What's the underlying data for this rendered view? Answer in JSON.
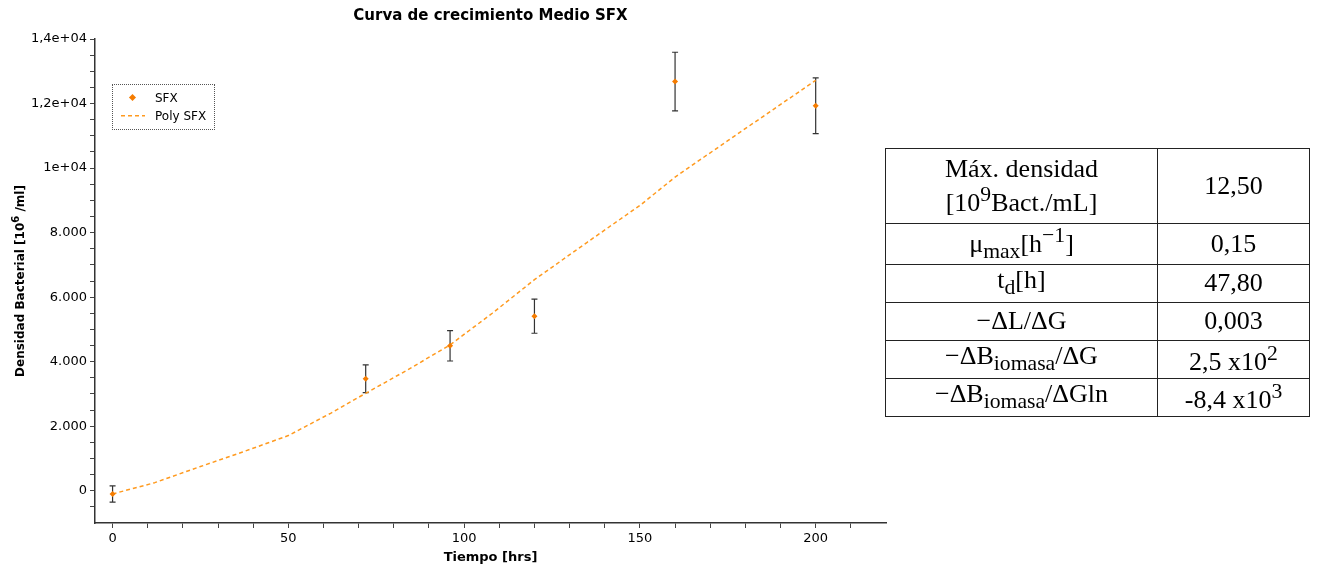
{
  "chart_data": [
    {
      "type": "scatter",
      "title": "Curva de crecimiento Medio SFX",
      "xlabel": "Tiempo [hrs]",
      "ylabel": "Densidad Bacterial [10$^{6}$ /ml]",
      "xlim": [
        -5,
        220
      ],
      "ylim": [
        -1000,
        14000
      ],
      "xticks": [
        0,
        {
          "value": 10,
          "label": null
        },
        {
          "value": 20,
          "label": null
        },
        {
          "value": 30,
          "label": null
        },
        {
          "value": 40,
          "label": null
        },
        50,
        {
          "value": 60,
          "label": null
        },
        {
          "value": 70,
          "label": null
        },
        {
          "value": 80,
          "label": null
        },
        {
          "value": 90,
          "label": null
        },
        100,
        {
          "value": 110,
          "label": null
        },
        {
          "value": 120,
          "label": null
        },
        {
          "value": 130,
          "label": null
        },
        {
          "value": 140,
          "label": null
        },
        150,
        {
          "value": 160,
          "label": null
        },
        {
          "value": 170,
          "label": null
        },
        {
          "value": 180,
          "label": null
        },
        {
          "value": 190,
          "label": null
        },
        200,
        {
          "value": 210,
          "label": null
        }
      ],
      "yticks": [
        {
          "value": -500,
          "label": null
        },
        0,
        {
          "value": 500,
          "label": null
        },
        {
          "value": 1000,
          "label": null
        },
        {
          "value": 1500,
          "label": null
        },
        {
          "value": 2000,
          "label": "2.000"
        },
        {
          "value": 2500,
          "label": null
        },
        {
          "value": 3000,
          "label": null
        },
        {
          "value": 3500,
          "label": null
        },
        {
          "value": 4000,
          "label": "4.000"
        },
        {
          "value": 4500,
          "label": null
        },
        {
          "value": 5000,
          "label": null
        },
        {
          "value": 5500,
          "label": null
        },
        {
          "value": 6000,
          "label": "6.000"
        },
        {
          "value": 6500,
          "label": null
        },
        {
          "value": 7000,
          "label": null
        },
        {
          "value": 7500,
          "label": null
        },
        {
          "value": 8000,
          "label": "8.000"
        },
        {
          "value": 8500,
          "label": null
        },
        {
          "value": 9000,
          "label": null
        },
        {
          "value": 9500,
          "label": null
        },
        {
          "value": 10000,
          "label": "1e+04"
        },
        {
          "value": 10500,
          "label": null
        },
        {
          "value": 11000,
          "label": null
        },
        {
          "value": 11500,
          "label": null
        },
        {
          "value": 12000,
          "label": "1,2e+04"
        },
        {
          "value": 12500,
          "label": null
        },
        {
          "value": 13000,
          "label": null
        },
        {
          "value": 13500,
          "label": null
        },
        {
          "value": 14000,
          "label": "1,4e+04"
        }
      ],
      "grid": false,
      "legend": "top left",
      "series": [
        {
          "name": "SFX",
          "type": "scatter",
          "color": "#f57c00",
          "marker": "diamond",
          "x": [
            0,
            72,
            96,
            120,
            160,
            200
          ],
          "values": [
            -100,
            3470,
            4490,
            5410,
            12680,
            11930
          ],
          "errors": [
            250,
            430,
            470,
            530,
            910,
            865
          ]
        },
        {
          "name": "Poly SFX",
          "type": "line",
          "color": "#ff9a1f",
          "marker": "none",
          "line_style": "dashed",
          "x": [
            0,
            12,
            25,
            37,
            50,
            62,
            72,
            84,
            96,
            108,
            120,
            135,
            150,
            160,
            175,
            188,
            200
          ],
          "values": [
            -100,
            250,
            750,
            1200,
            1710,
            2400,
            3020,
            3750,
            4520,
            5500,
            6540,
            7700,
            8840,
            9720,
            10850,
            11820,
            12720
          ]
        }
      ]
    },
    {
      "type": "other",
      "annotations": [
        "Máx. densidad [10$^{9}$Bact./mL]",
        "12,50",
        "μ$_{max}$[h$^{−1}$]",
        "0,15",
        "t$_{d}$[h]",
        "47,80",
        "−ΔL/ΔG",
        "0,003",
        "−ΔB$_{iomasa}$/ΔG",
        "2,5 x10$^{2}$",
        "−ΔB$_{iomasa}$/ΔGln",
        "-8,4 x10$^{3}$"
      ]
    }
  ]
}
